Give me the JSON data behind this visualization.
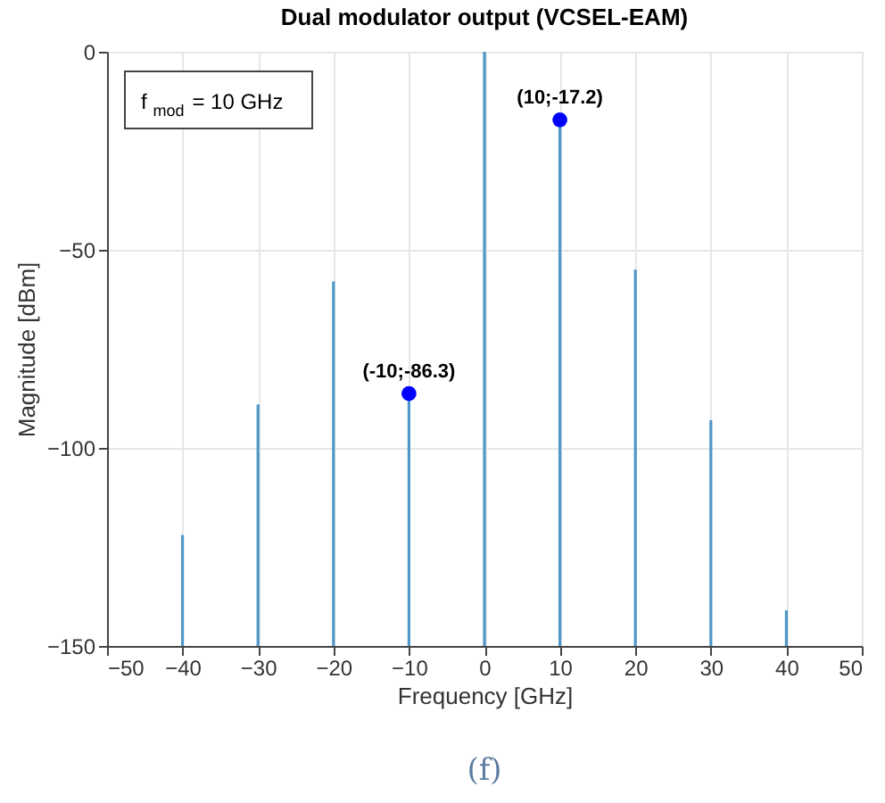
{
  "chart_data": {
    "type": "bar",
    "title": "Dual modulator output (VCSEL-EAM)",
    "xlabel": "Frequency [GHz]",
    "ylabel": "Magnitude [dBm]",
    "series": [
      {
        "color": "#4f97c9",
        "x": [
          -40,
          -30,
          -20,
          -10,
          0,
          10,
          20,
          30,
          40
        ],
        "base": [
          -150,
          -150,
          -150,
          -150,
          -150,
          -150,
          -150,
          -150,
          -150
        ],
        "values": [
          28,
          61,
          92,
          63.7,
          150,
          132.8,
          95,
          57,
          9
        ]
      },
      {
        "type": "scatter",
        "color": "#0000ff",
        "x": [
          -10,
          10
        ],
        "values": [
          -86.3,
          -17.2
        ],
        "value_labels": [
          "(-10;-86.3)",
          "(10;-17.2)"
        ]
      }
    ],
    "xlim": [
      -50,
      50
    ],
    "xticks": [
      -50,
      -40,
      -30,
      -20,
      -10,
      0,
      10,
      20,
      30,
      40,
      50
    ],
    "ylim": [
      -150,
      0
    ],
    "yticks": [
      -150,
      -100,
      -50,
      0
    ],
    "grid": true,
    "marker": "circle",
    "annotations": [
      "f$_{mod}$ = 10 GHz",
      "(f)"
    ]
  }
}
